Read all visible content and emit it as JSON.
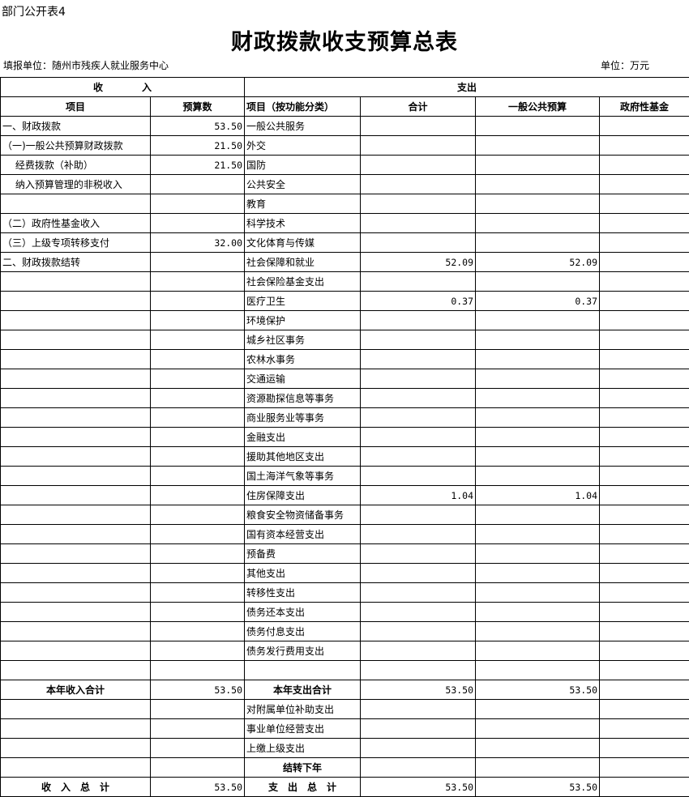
{
  "doc_label": "部门公开表4",
  "title": "财政拨款收支预算总表",
  "org": "填报单位：随州市残疾人就业服务中心",
  "unit": "单位：万元",
  "header": {
    "income": "收　　　　入",
    "expense": "支出"
  },
  "columns": [
    "项目",
    "预算数",
    "项目（按功能分类）",
    "合计",
    "一般公共预算",
    "政府性基金"
  ],
  "rows": [
    {
      "c": [
        "一、财政拨款",
        "53.50",
        "一般公共服务",
        "",
        "",
        ""
      ]
    },
    {
      "c": [
        "（一)一般公共预算财政拨款",
        "21.50",
        "外交",
        "",
        "",
        ""
      ]
    },
    {
      "c": [
        "　 经费拨款（补助）",
        "21.50",
        "国防",
        "",
        "",
        ""
      ]
    },
    {
      "c": [
        "　 纳入预算管理的非税收入",
        "",
        "公共安全",
        "",
        "",
        ""
      ]
    },
    {
      "c": [
        "",
        "",
        "教育",
        "",
        "",
        ""
      ]
    },
    {
      "c": [
        "（二）政府性基金收入",
        "",
        "科学技术",
        "",
        "",
        ""
      ]
    },
    {
      "c": [
        "（三）上级专项转移支付",
        "32.00",
        "文化体育与传媒",
        "",
        "",
        ""
      ]
    },
    {
      "c": [
        "二、财政拨款结转",
        "",
        "社会保障和就业",
        "52.09",
        "52.09",
        ""
      ]
    },
    {
      "c": [
        "",
        "",
        "社会保险基金支出",
        "",
        "",
        ""
      ]
    },
    {
      "c": [
        "",
        "",
        "医疗卫生",
        "0.37",
        "0.37",
        ""
      ]
    },
    {
      "c": [
        "",
        "",
        "环境保护",
        "",
        "",
        ""
      ]
    },
    {
      "c": [
        "",
        "",
        "城乡社区事务",
        "",
        "",
        ""
      ]
    },
    {
      "c": [
        "",
        "",
        "农林水事务",
        "",
        "",
        ""
      ]
    },
    {
      "c": [
        "",
        "",
        "交通运输",
        "",
        "",
        ""
      ]
    },
    {
      "c": [
        "",
        "",
        "资源勘探信息等事务",
        "",
        "",
        ""
      ]
    },
    {
      "c": [
        "",
        "",
        "商业服务业等事务",
        "",
        "",
        ""
      ]
    },
    {
      "c": [
        "",
        "",
        "金融支出",
        "",
        "",
        ""
      ]
    },
    {
      "c": [
        "",
        "",
        "援助其他地区支出",
        "",
        "",
        ""
      ]
    },
    {
      "c": [
        "",
        "",
        "国土海洋气象等事务",
        "",
        "",
        ""
      ]
    },
    {
      "c": [
        "",
        "",
        "住房保障支出",
        "1.04",
        "1.04",
        ""
      ]
    },
    {
      "c": [
        "",
        "",
        "粮食安全物资储备事务",
        "",
        "",
        ""
      ]
    },
    {
      "c": [
        "",
        "",
        "国有资本经营支出",
        "",
        "",
        ""
      ]
    },
    {
      "c": [
        "",
        "",
        "预备费",
        "",
        "",
        ""
      ]
    },
    {
      "c": [
        "",
        "",
        "其他支出",
        "",
        "",
        ""
      ]
    },
    {
      "c": [
        "",
        "",
        "转移性支出",
        "",
        "",
        ""
      ]
    },
    {
      "c": [
        "",
        "",
        "债务还本支出",
        "",
        "",
        ""
      ]
    },
    {
      "c": [
        "",
        "",
        "债务付息支出",
        "",
        "",
        ""
      ]
    },
    {
      "c": [
        "",
        "",
        "债务发行费用支出",
        "",
        "",
        ""
      ]
    },
    {
      "c": [
        "",
        "",
        "",
        "",
        "",
        ""
      ]
    },
    {
      "c": [
        "本年收入合计",
        "53.50",
        "本年支出合计",
        "53.50",
        "53.50",
        ""
      ],
      "bold": true
    },
    {
      "c": [
        "",
        "",
        "对附属单位补助支出",
        "",
        "",
        ""
      ]
    },
    {
      "c": [
        "",
        "",
        "事业单位经营支出",
        "",
        "",
        ""
      ]
    },
    {
      "c": [
        "",
        "",
        "上缴上级支出",
        "",
        "",
        ""
      ]
    },
    {
      "c": [
        "",
        "",
        "结转下年",
        "",
        "",
        ""
      ],
      "bold": true
    },
    {
      "c": [
        "收　入　总　计",
        "53.50",
        "支　出　总　计",
        "53.50",
        "53.50",
        ""
      ],
      "bold": true
    }
  ]
}
